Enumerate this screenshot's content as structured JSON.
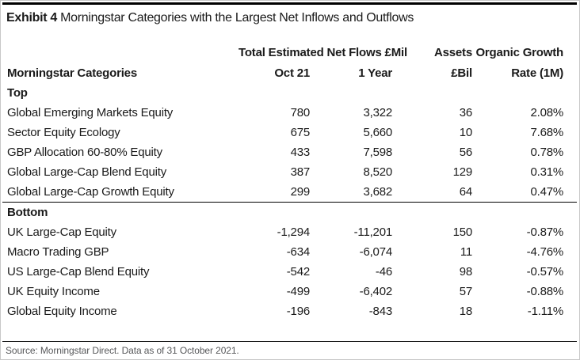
{
  "exhibit_label": "Exhibit 4",
  "exhibit_title": "Morningstar Categories with the Largest Net Inflows and Outflows",
  "chart_data": {
    "type": "table",
    "title": "Exhibit 4 Morningstar Categories with the Largest Net Inflows and Outflows",
    "header": {
      "col1": "Morningstar Categories",
      "flows_group": "Total Estimated Net Flows £Mil",
      "oct21": "Oct 21",
      "one_year": "1 Year",
      "assets_top": "Assets",
      "assets_bottom": "£Bil",
      "growth_top": "Organic Growth",
      "growth_bottom": "Rate (1M)"
    },
    "columns": [
      "Morningstar Categories",
      "Oct 21 (£Mil)",
      "1 Year (£Mil)",
      "Assets £Bil",
      "Organic Growth Rate (1M)"
    ],
    "sections": [
      {
        "label": "Top",
        "rows": [
          {
            "category": "Global Emerging Markets Equity",
            "oct21": "780",
            "one_year": "3,322",
            "assets": "36",
            "organic_growth": "2.08%"
          },
          {
            "category": "Sector Equity Ecology",
            "oct21": "675",
            "one_year": "5,660",
            "assets": "10",
            "organic_growth": "7.68%"
          },
          {
            "category": "GBP Allocation 60-80% Equity",
            "oct21": "433",
            "one_year": "7,598",
            "assets": "56",
            "organic_growth": "0.78%"
          },
          {
            "category": "Global Large-Cap Blend Equity",
            "oct21": "387",
            "one_year": "8,520",
            "assets": "129",
            "organic_growth": "0.31%"
          },
          {
            "category": "Global Large-Cap Growth Equity",
            "oct21": "299",
            "one_year": "3,682",
            "assets": "64",
            "organic_growth": "0.47%"
          }
        ]
      },
      {
        "label": "Bottom",
        "rows": [
          {
            "category": "UK Large-Cap Equity",
            "oct21": "-1,294",
            "one_year": "-11,201",
            "assets": "150",
            "organic_growth": "-0.87%"
          },
          {
            "category": "Macro Trading GBP",
            "oct21": "-634",
            "one_year": "-6,074",
            "assets": "11",
            "organic_growth": "-4.76%"
          },
          {
            "category": "US Large-Cap Blend Equity",
            "oct21": "-542",
            "one_year": "-46",
            "assets": "98",
            "organic_growth": "-0.57%"
          },
          {
            "category": "UK Equity Income",
            "oct21": "-499",
            "one_year": "-6,402",
            "assets": "57",
            "organic_growth": "-0.88%"
          },
          {
            "category": "Global Equity Income",
            "oct21": "-196",
            "one_year": "-843",
            "assets": "18",
            "organic_growth": "-1.11%"
          }
        ]
      }
    ]
  },
  "source": "Source: Morningstar Direct. Data as of 31 October 2021."
}
